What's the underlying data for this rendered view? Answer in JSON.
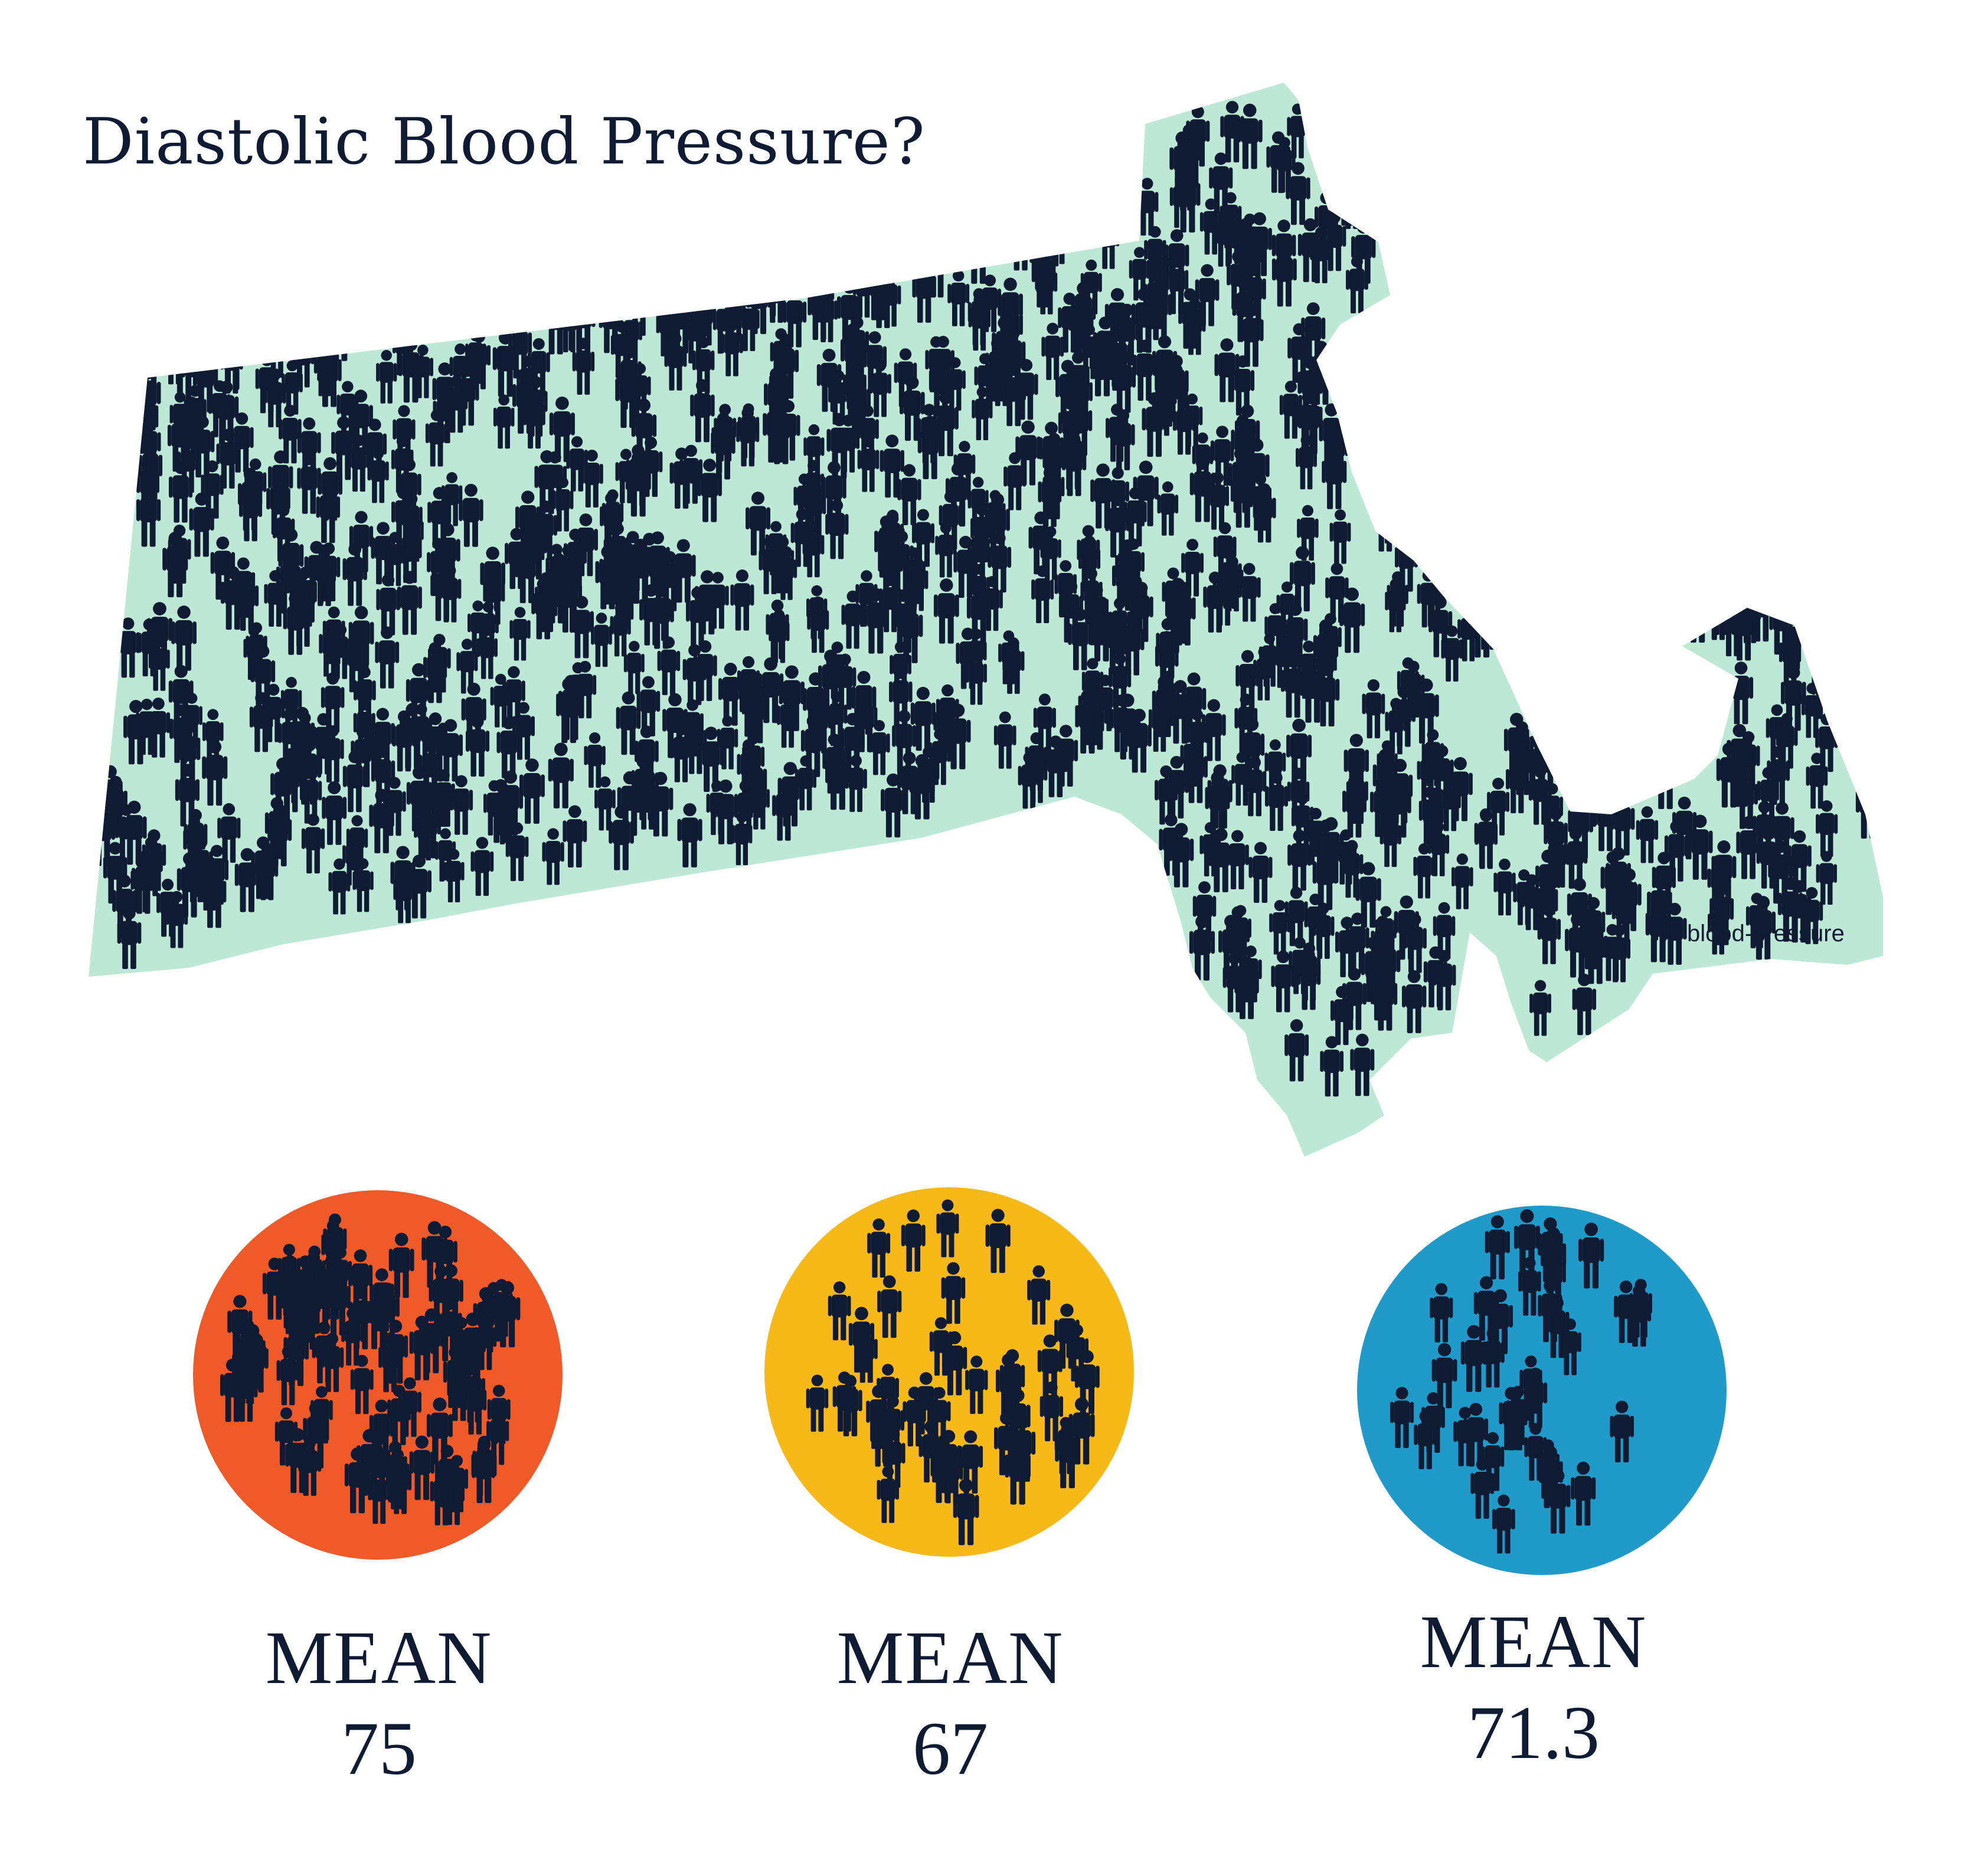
{
  "title": "Diastolic Blood Pressure?",
  "map": {
    "region": "massachusetts-map",
    "label": "blood-pressure",
    "fill_color": "#bde8d5",
    "people_color": "#0e1b33"
  },
  "samples": [
    {
      "label": "MEAN",
      "value": "75",
      "color": "#f05a28"
    },
    {
      "label": "MEAN",
      "value": "67",
      "color": "#f7b918"
    },
    {
      "label": "MEAN",
      "value": "71.3",
      "color": "#1f9ac9"
    }
  ]
}
